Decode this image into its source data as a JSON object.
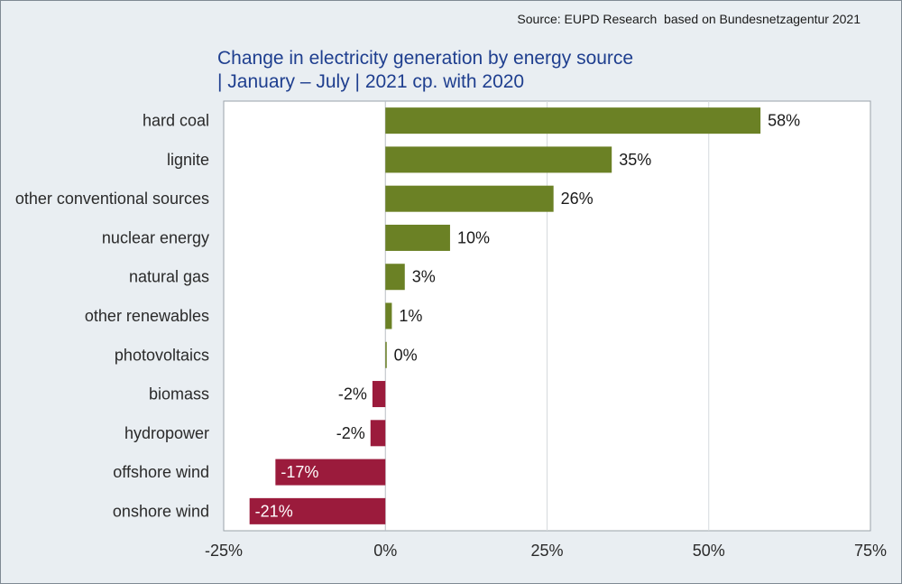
{
  "source": "Source: EUPD Research  based on Bundesnetzagentur 2021",
  "title_line1": "Change in electricity generation by energy source",
  "title_line2": "| January – July | 2021 cp. with 2020",
  "colors": {
    "positive": "#6b8125",
    "negative": "#9b1b3c",
    "background": "#e9eef2",
    "plot": "#ffffff",
    "title": "#1f3f8f"
  },
  "chart_data": {
    "type": "bar",
    "orientation": "horizontal",
    "title": "Change in electricity generation by energy source | January – July | 2021 cp. with 2020",
    "categories": [
      "hard coal",
      "lignite",
      "other conventional sources",
      "nuclear energy",
      "natural gas",
      "other renewables",
      "photovoltaics",
      "biomass",
      "hydropower",
      "offshore wind",
      "onshore wind"
    ],
    "values": [
      58,
      35,
      26,
      10,
      3,
      1,
      0.2,
      -2,
      -2.3,
      -17,
      -21
    ],
    "labels": [
      "58%",
      "35%",
      "26%",
      "10%",
      "3%",
      "1%",
      "0%",
      "-2%",
      "-2%",
      "-17%",
      "-21%"
    ],
    "xlim": [
      -25,
      75
    ],
    "xticks": [
      -25,
      0,
      25,
      50,
      75
    ],
    "xtick_labels": [
      "-25%",
      "0%",
      "25%",
      "50%",
      "75%"
    ],
    "grid": true,
    "legend": "none"
  }
}
